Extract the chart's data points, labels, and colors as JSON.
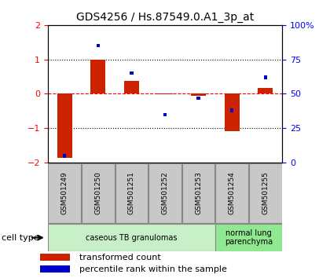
{
  "title": "GDS4256 / Hs.87549.0.A1_3p_at",
  "samples": [
    "GSM501249",
    "GSM501250",
    "GSM501251",
    "GSM501252",
    "GSM501253",
    "GSM501254",
    "GSM501255"
  ],
  "red_values": [
    -1.85,
    1.0,
    0.38,
    -0.02,
    -0.05,
    -1.08,
    0.18
  ],
  "blue_pcts": [
    5,
    85,
    65,
    35,
    47,
    38,
    62
  ],
  "cell_types": [
    {
      "label": "caseous TB granulomas",
      "span": [
        0,
        5
      ],
      "color": "#c8f0c8"
    },
    {
      "label": "normal lung\nparenchyma",
      "span": [
        5,
        7
      ],
      "color": "#90e890"
    }
  ],
  "ylim": [
    -2,
    2
  ],
  "yticks_left": [
    -2,
    -1,
    0,
    1,
    2
  ],
  "yticks_right_labels": [
    "0",
    "25",
    "50",
    "75",
    "100%"
  ],
  "red_color": "#cc2200",
  "blue_color": "#0000cc",
  "bar_width": 0.45,
  "legend_red": "transformed count",
  "legend_blue": "percentile rank within the sample",
  "cell_type_label": "cell type",
  "background_color": "#ffffff",
  "gray_color": "#c8c8c8",
  "gray_edge": "#888888"
}
